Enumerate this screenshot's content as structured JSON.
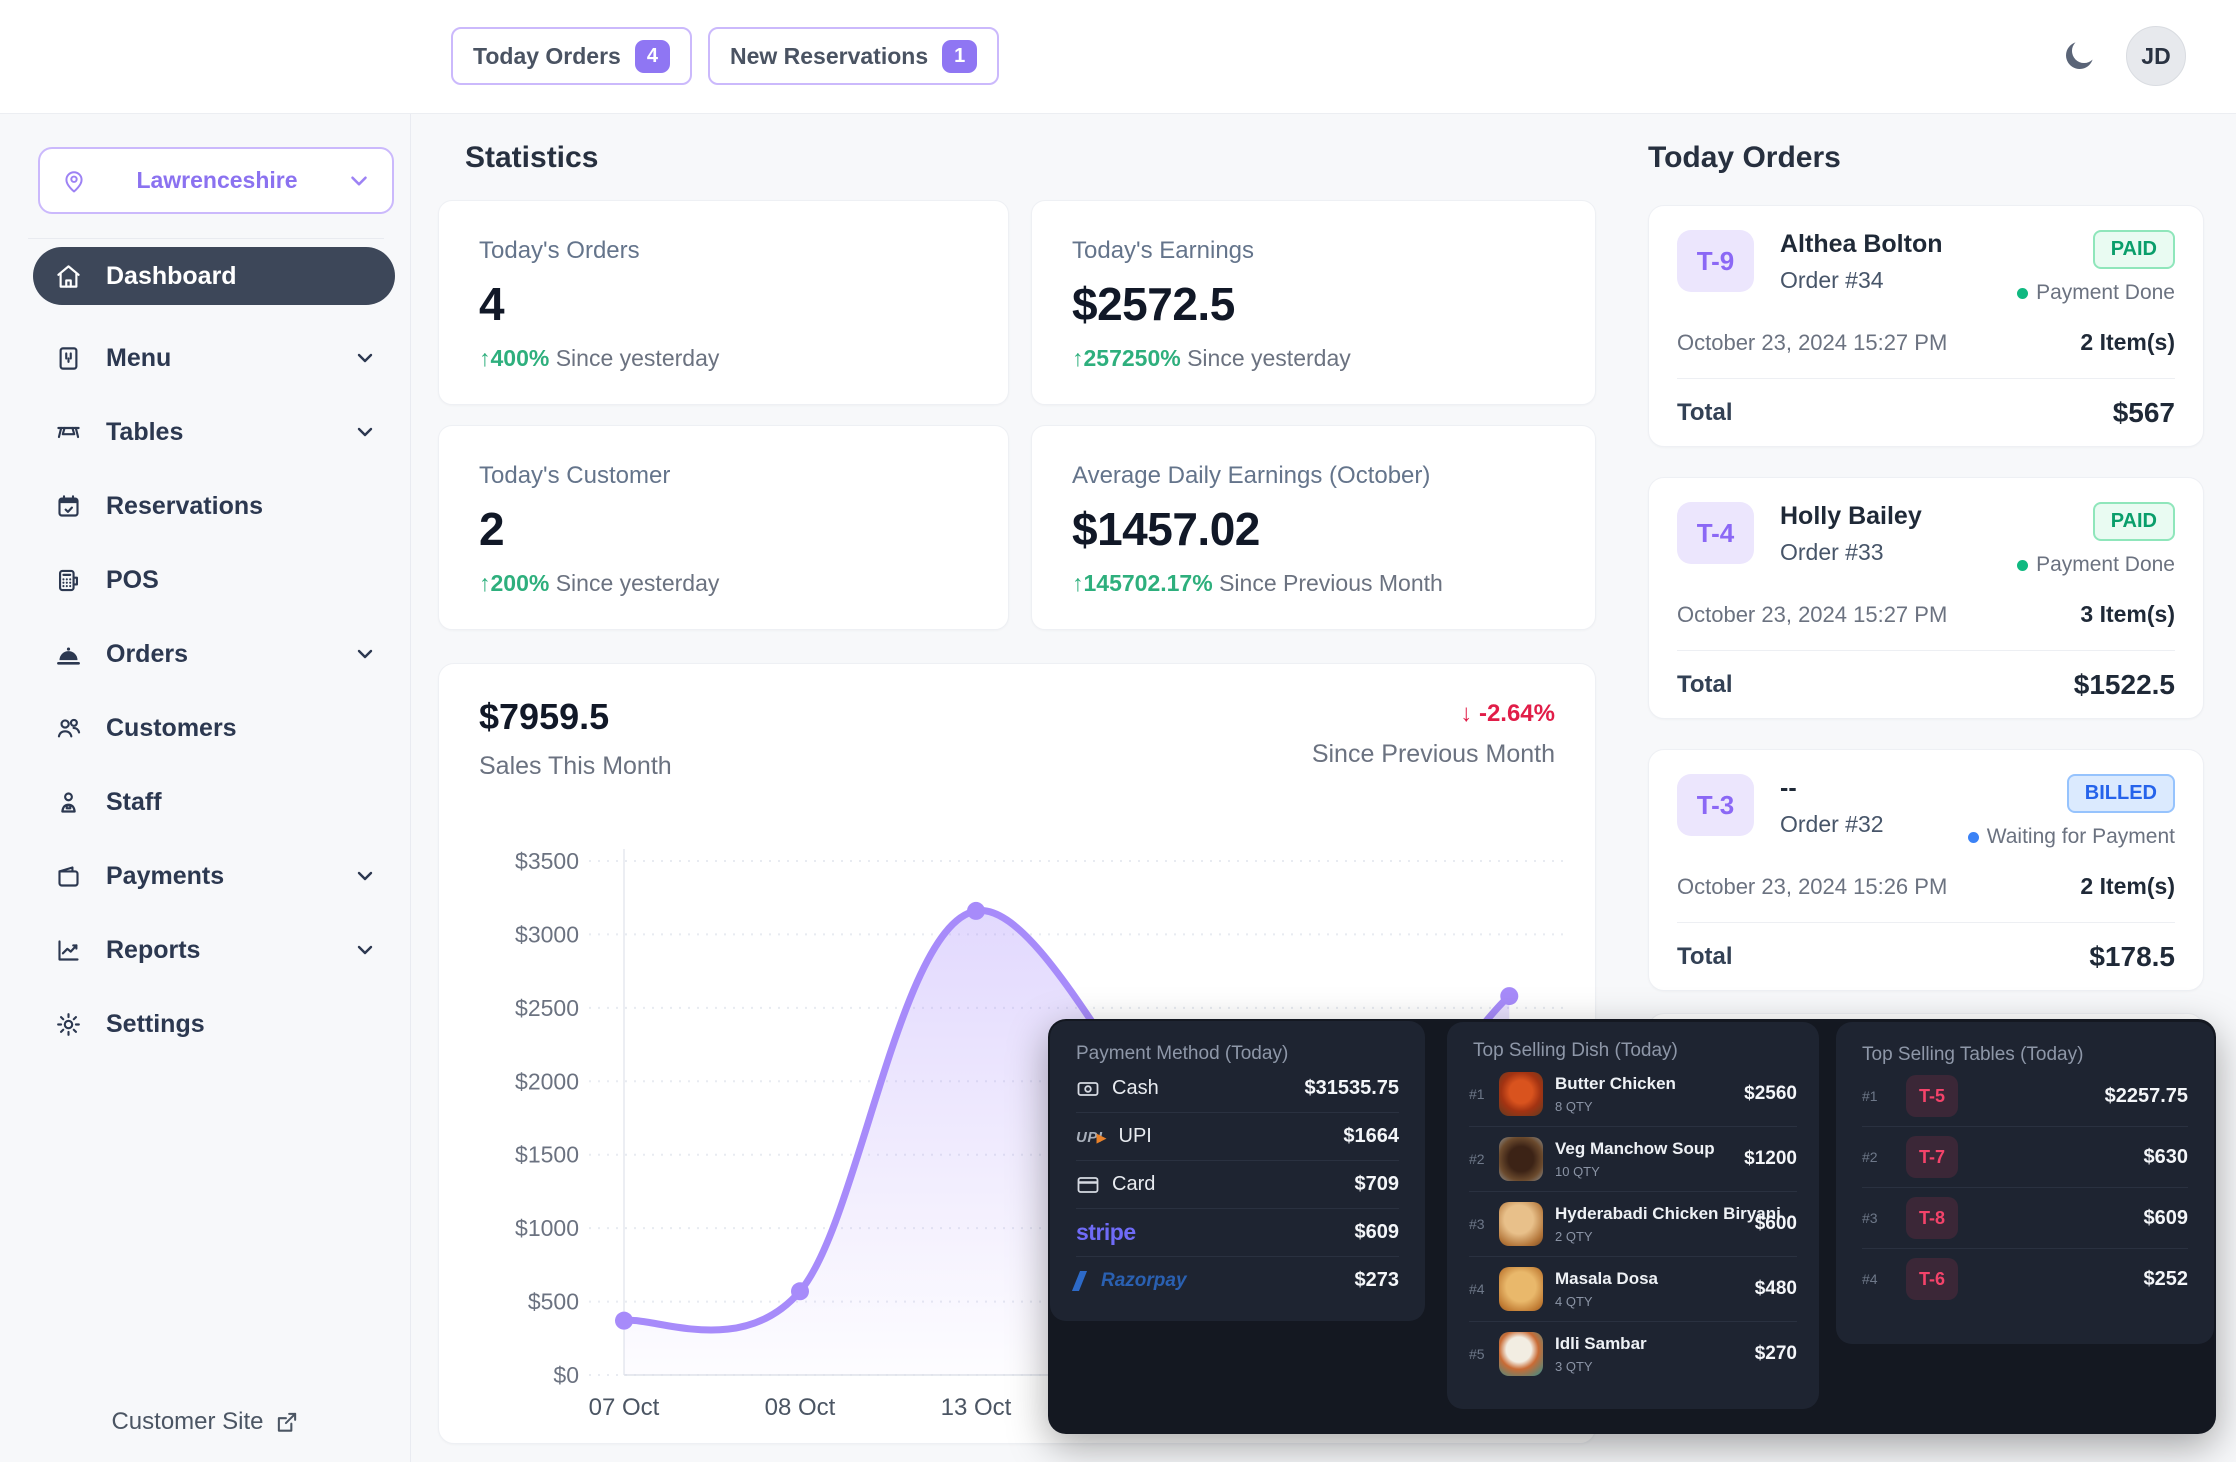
{
  "topbar": {
    "today_orders": {
      "label": "Today Orders",
      "count": "4"
    },
    "new_reservations": {
      "label": "New Reservations",
      "count": "1"
    },
    "avatar_initials": "JD"
  },
  "sidebar": {
    "location": "Lawrenceshire",
    "items": [
      {
        "label": "Dashboard",
        "icon": "home-icon",
        "active": true,
        "chevron": false
      },
      {
        "label": "Menu",
        "icon": "menu-book-icon",
        "active": false,
        "chevron": true
      },
      {
        "label": "Tables",
        "icon": "table-icon",
        "active": false,
        "chevron": true
      },
      {
        "label": "Reservations",
        "icon": "calendar-check-icon",
        "active": false,
        "chevron": false
      },
      {
        "label": "POS",
        "icon": "pos-terminal-icon",
        "active": false,
        "chevron": false
      },
      {
        "label": "Orders",
        "icon": "cloche-icon",
        "active": false,
        "chevron": true
      },
      {
        "label": "Customers",
        "icon": "users-icon",
        "active": false,
        "chevron": false
      },
      {
        "label": "Staff",
        "icon": "staff-icon",
        "active": false,
        "chevron": false
      },
      {
        "label": "Payments",
        "icon": "wallet-icon",
        "active": false,
        "chevron": true
      },
      {
        "label": "Reports",
        "icon": "chart-line-icon",
        "active": false,
        "chevron": true
      },
      {
        "label": "Settings",
        "icon": "gear-icon",
        "active": false,
        "chevron": false
      }
    ],
    "customer_site_label": "Customer Site"
  },
  "stats": {
    "heading": "Statistics",
    "cards": [
      {
        "title": "Today's Orders",
        "value": "4",
        "delta": "400%",
        "note": "Since yesterday"
      },
      {
        "title": "Today's Earnings",
        "value": "$2572.5",
        "delta": "257250%",
        "note": "Since yesterday"
      },
      {
        "title": "Today's Customer",
        "value": "2",
        "delta": "200%",
        "note": "Since yesterday"
      },
      {
        "title": "Average Daily Earnings (October)",
        "value": "$1457.02",
        "delta": "145702.17%",
        "note": "Since Previous Month"
      }
    ]
  },
  "chart_data": {
    "type": "area",
    "total_value": "$7959.5",
    "total_label": "Sales This Month",
    "delta": "-2.64%",
    "delta_direction": "down",
    "delta_note": "Since Previous Month",
    "y_ticks": [
      "$3500",
      "$3000",
      "$2500",
      "$2000",
      "$1500",
      "$1000",
      "$500",
      "$0"
    ],
    "ylim": [
      0,
      3500
    ],
    "x_ticks_visible": [
      "07 Oct",
      "08 Oct",
      "13 Oct"
    ],
    "grid": "dotted-horizontal",
    "legend": "none",
    "line_color": "#a78bfa",
    "series": [
      {
        "name": "Sales",
        "points": [
          {
            "x_label": "07 Oct",
            "tick": 0,
            "value": 370
          },
          {
            "x_label": "08 Oct",
            "tick": 1,
            "value": 570
          },
          {
            "x_label": "13 Oct",
            "tick": 2,
            "value": 3160
          },
          {
            "x_label": "hidden-behind-overlay",
            "tick": 3.6,
            "value": 1100,
            "dot": false,
            "estimated": true
          },
          {
            "x_label": "hidden-behind-overlay",
            "tick": 5.03,
            "value": 2580,
            "estimated": true
          }
        ]
      }
    ]
  },
  "today_orders": {
    "heading": "Today Orders",
    "orders": [
      {
        "table": "T-9",
        "name": "Althea Bolton",
        "order_no": "Order #34",
        "status": "PAID",
        "status_note": "Payment Done",
        "datetime": "October 23, 2024 15:27 PM",
        "items": "2 Item(s)",
        "total_label": "Total",
        "total": "$567"
      },
      {
        "table": "T-4",
        "name": "Holly Bailey",
        "order_no": "Order #33",
        "status": "PAID",
        "status_note": "Payment Done",
        "datetime": "October 23, 2024 15:27 PM",
        "items": "3 Item(s)",
        "total_label": "Total",
        "total": "$1522.5"
      },
      {
        "table": "T-3",
        "name": "--",
        "order_no": "Order #32",
        "status": "BILLED",
        "status_note": "Waiting for Payment",
        "datetime": "October 23, 2024 15:26 PM",
        "items": "2 Item(s)",
        "total_label": "Total",
        "total": "$178.5"
      }
    ]
  },
  "overlay": {
    "payment": {
      "title": "Payment Method (Today)",
      "rows": [
        {
          "method": "Cash",
          "amount": "$31535.75",
          "icon": "cash-icon"
        },
        {
          "method": "UPI",
          "amount": "$1664",
          "icon": "upi-logo"
        },
        {
          "method": "Card",
          "amount": "$709",
          "icon": "credit-card-icon"
        },
        {
          "method": "stripe",
          "amount": "$609",
          "icon": "stripe-logo"
        },
        {
          "method": "Razorpay",
          "amount": "$273",
          "icon": "razorpay-logo"
        }
      ]
    },
    "dishes": {
      "title": "Top Selling Dish (Today)",
      "rows": [
        {
          "rank": "#1",
          "name": "Butter Chicken",
          "qty": "8 QTY",
          "amount": "$2560"
        },
        {
          "rank": "#2",
          "name": "Veg Manchow Soup",
          "qty": "10 QTY",
          "amount": "$1200"
        },
        {
          "rank": "#3",
          "name": "Hyderabadi Chicken Biryani",
          "qty": "2 QTY",
          "amount": "$600"
        },
        {
          "rank": "#4",
          "name": "Masala Dosa",
          "qty": "4 QTY",
          "amount": "$480"
        },
        {
          "rank": "#5",
          "name": "Idli Sambar",
          "qty": "3 QTY",
          "amount": "$270"
        }
      ]
    },
    "tables": {
      "title": "Top Selling Tables (Today)",
      "rows": [
        {
          "rank": "#1",
          "table": "T-5",
          "amount": "$2257.75"
        },
        {
          "rank": "#2",
          "table": "T-7",
          "amount": "$630"
        },
        {
          "rank": "#3",
          "table": "T-8",
          "amount": "$609"
        },
        {
          "rank": "#4",
          "table": "T-6",
          "amount": "$252"
        }
      ]
    }
  },
  "colors": {
    "accent_purple": "#8b5cf6",
    "line_purple": "#a78bfa",
    "paid_green": "#0a9e6b",
    "billed_blue": "#2563eb",
    "delta_green": "#2eaf7d",
    "delta_red": "#e11d48",
    "table_red": "#f4436a",
    "active_nav": "#3d4759"
  }
}
